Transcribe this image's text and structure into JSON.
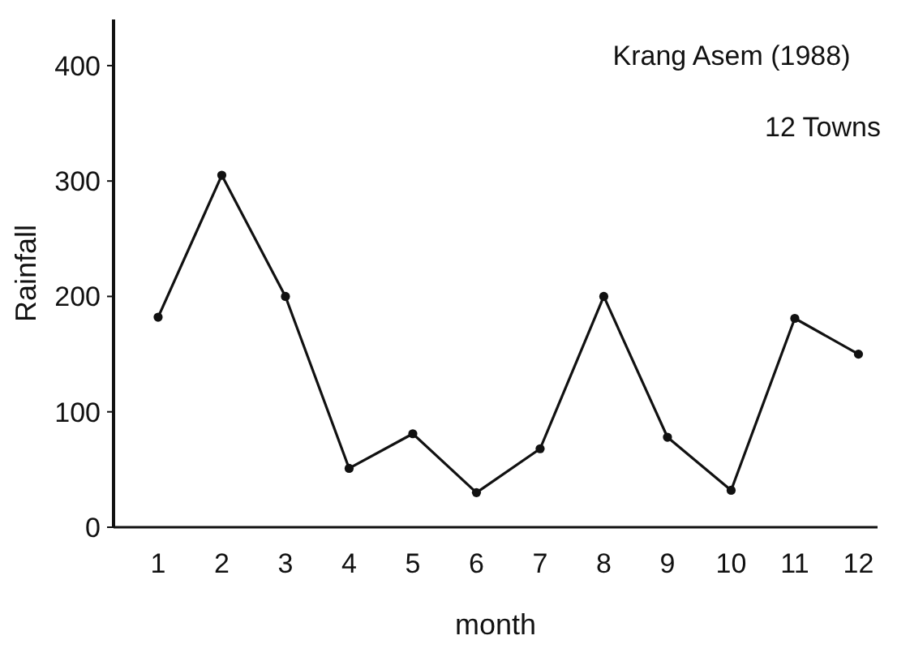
{
  "chart_data": {
    "type": "line",
    "title": "Krang Asem (1988)",
    "subtitle": "12 Towns",
    "xlabel": "month",
    "ylabel": "Rainfall",
    "x": [
      1,
      2,
      3,
      4,
      5,
      6,
      7,
      8,
      9,
      10,
      11,
      12
    ],
    "values": [
      182,
      305,
      200,
      51,
      81,
      30,
      68,
      200,
      78,
      32,
      181,
      150
    ],
    "color": "#111111",
    "marker": "circle",
    "line_style": "solid",
    "xlim": [
      0.3,
      12.3
    ],
    "xticks": [
      1,
      2,
      3,
      4,
      5,
      6,
      7,
      8,
      9,
      10,
      11,
      12
    ],
    "ylim": [
      0,
      440
    ],
    "yticks": [
      0,
      100,
      200,
      300,
      400
    ],
    "grid": false
  }
}
